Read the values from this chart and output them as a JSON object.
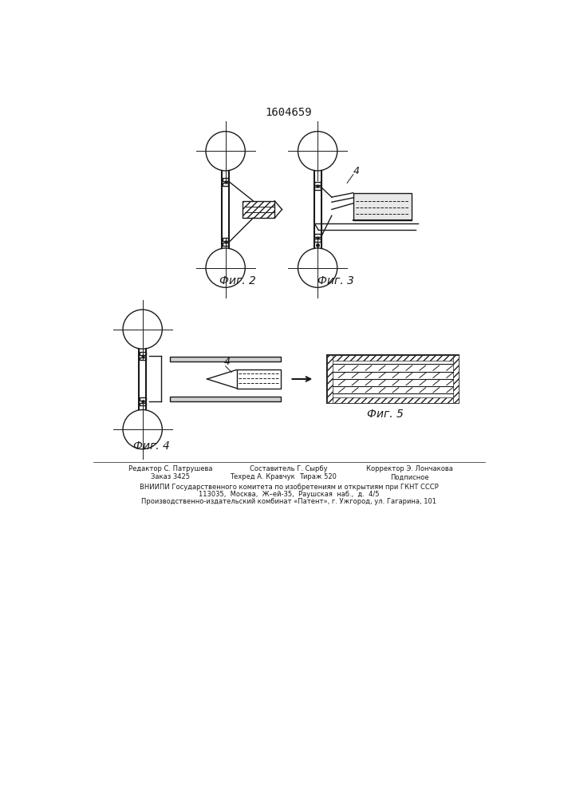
{
  "title": "1604659",
  "title_fontsize": 10,
  "fig_width": 7.07,
  "fig_height": 10.0,
  "bg_color": "#ffffff",
  "line_color": "#1a1a1a",
  "fig2_label": "Фиг. 2",
  "fig3_label": "Фиг. 3",
  "fig4_label": "Фиг. 4",
  "fig5_label": "Фиг. 5",
  "footer_col1_line1": "Редактор С. Патрушева",
  "footer_col2_line1": "Составитель Г. Сырбу",
  "footer_col3_line1": "Корректор Э. Лончакова",
  "footer_col1_line2": "Заказ 3425",
  "footer_col2_line2": "Техред А. Кравчук",
  "footer_col2b_line2": "Тираж 520",
  "footer_col3_line2": "Подписное",
  "footer_vniipmi": "ВНИИПИ Государственного комитета по изобретениям и открытиям при ГКНТ СССР",
  "footer_addr1": "113035,  Москва,  Ж–ей-35,  Раушская  наб.,  д.  4/5",
  "footer_addr2": "Производственно-издательский комбинат «Патент», г. Ужгород, ул. Гагарина, 101"
}
